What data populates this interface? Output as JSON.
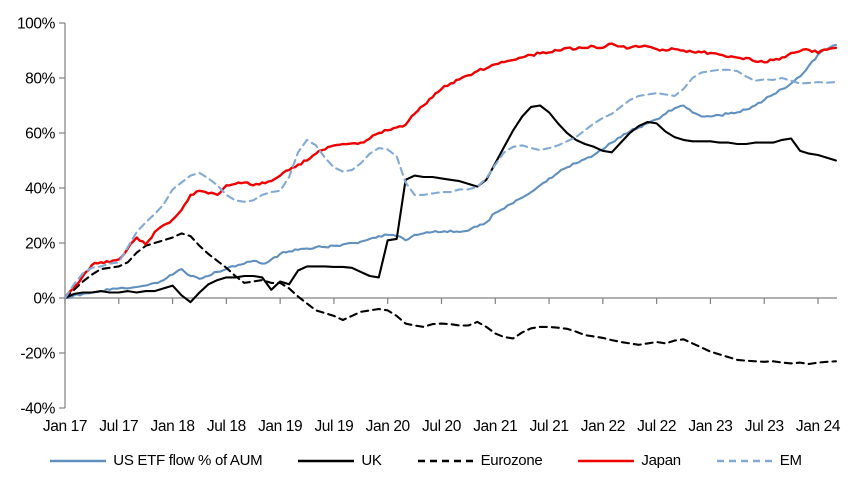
{
  "chart_data": {
    "type": "line",
    "title": "",
    "xlabel": "",
    "ylabel": "",
    "y_axis": {
      "min": -40,
      "max": 100,
      "tick_step": 20,
      "unit": "%",
      "tick_labels": [
        "100%",
        "80%",
        "60%",
        "40%",
        "20%",
        "0%",
        "-20%",
        "-40%"
      ]
    },
    "x_axis": {
      "interval": "monthly points, labels every 6 months",
      "start": "Jan 17",
      "end": "Mar 24",
      "tick_labels": [
        "Jan 17",
        "Jul 17",
        "Jan 18",
        "Jul 18",
        "Jan 19",
        "Jul 19",
        "Jan 20",
        "Jul 20",
        "Jan 21",
        "Jul 21",
        "Jan 22",
        "Jul 22",
        "Jan 23",
        "Jul 23",
        "Jan 24"
      ]
    },
    "grid": "zero line only",
    "legend_position": "bottom",
    "series": [
      {
        "name": "US ETF flow % of AUM",
        "color": "#6090C0",
        "style": "solid",
        "jitter": 0.45,
        "values": [
          0,
          1,
          1.5,
          2,
          2.5,
          3,
          3.5,
          3.5,
          4,
          4.5,
          5.5,
          6.5,
          8.5,
          10.5,
          8,
          7,
          8,
          9.5,
          10.5,
          11.5,
          12.5,
          13.5,
          12.5,
          14,
          16,
          17,
          17.5,
          18,
          18.5,
          18.5,
          19,
          19.5,
          20,
          20.5,
          21.5,
          22.5,
          23,
          22.5,
          21,
          23,
          23.5,
          24,
          24,
          24.5,
          24,
          24.5,
          26,
          27.5,
          31,
          32.5,
          34.5,
          36.5,
          38.5,
          41,
          43.5,
          45.5,
          47.5,
          49,
          50.5,
          52,
          54,
          56.5,
          58.5,
          60.5,
          62,
          63.5,
          65,
          67,
          69,
          70,
          67.5,
          66,
          66,
          66.5,
          67,
          67.5,
          68.5,
          70,
          72,
          74,
          76,
          78,
          80.5,
          84.5,
          88.5,
          90.5,
          92
        ]
      },
      {
        "name": "UK",
        "color": "#000000",
        "style": "solid",
        "jitter": 0,
        "values": [
          0,
          1.5,
          2,
          2,
          2.5,
          2,
          2,
          2.5,
          2,
          2.5,
          2.5,
          3.5,
          4.5,
          1,
          -1.5,
          2,
          5,
          6.5,
          7.5,
          7.5,
          8,
          8,
          7.5,
          3,
          6,
          5,
          10,
          11.5,
          11.5,
          11.5,
          11.3,
          11.3,
          11,
          9.5,
          8,
          7.5,
          21,
          21.5,
          43,
          44.5,
          44,
          44,
          43.5,
          43,
          42.5,
          41.5,
          40.5,
          43,
          49,
          55,
          61,
          66,
          69.5,
          70,
          67.5,
          63.5,
          60,
          57.5,
          56,
          55,
          53.5,
          53,
          56.5,
          60,
          62.5,
          64,
          63.5,
          60.5,
          58.5,
          57.5,
          57,
          57,
          57,
          56.5,
          56.5,
          56,
          56,
          56.5,
          56.5,
          56.5,
          57.5,
          58,
          53.5,
          52.5,
          52,
          51,
          50
        ]
      },
      {
        "name": "Eurozone",
        "color": "#000000",
        "style": "dashed",
        "jitter": 0,
        "values": [
          0,
          3,
          6,
          8.5,
          10.5,
          11,
          11.5,
          13,
          16.5,
          19,
          20,
          21,
          22,
          23.5,
          22.5,
          19,
          16,
          13.5,
          11,
          8,
          5.5,
          6,
          6.5,
          5.5,
          5.5,
          3.5,
          0.5,
          -2,
          -4.5,
          -5.5,
          -6.5,
          -8,
          -6.5,
          -5,
          -4.5,
          -4,
          -4.5,
          -6.5,
          -9.3,
          -10,
          -10.5,
          -9.5,
          -9.3,
          -9.5,
          -10,
          -10,
          -8.7,
          -10.5,
          -12.9,
          -14.2,
          -14.7,
          -12.5,
          -11,
          -10.5,
          -10.5,
          -10.8,
          -11.2,
          -12.2,
          -13.5,
          -14,
          -14.5,
          -15.3,
          -16,
          -16.5,
          -17,
          -16.5,
          -16,
          -16.5,
          -15.5,
          -15,
          -16.5,
          -18,
          -19.5,
          -20.5,
          -21.5,
          -22.5,
          -22.8,
          -23,
          -23.2,
          -23,
          -23.5,
          -23.8,
          -23.5,
          -24,
          -23.5,
          -23.2,
          -23
        ]
      },
      {
        "name": "Japan",
        "color": "#F00000",
        "style": "solid",
        "jitter": 0.5,
        "values": [
          0,
          4,
          8,
          12,
          13,
          13,
          14,
          18,
          22,
          19.5,
          24,
          26.5,
          28.5,
          32,
          37.5,
          39,
          38,
          37.5,
          41,
          41.5,
          42,
          41,
          42,
          42.5,
          44.5,
          46.5,
          48.5,
          50,
          52.5,
          54,
          55.5,
          56,
          56.2,
          56.5,
          58,
          60,
          61,
          62,
          63,
          67,
          70,
          73,
          76,
          78,
          79.5,
          81,
          82.5,
          83.5,
          85,
          85.8,
          86.5,
          87.5,
          88.4,
          89,
          89.3,
          90,
          90.9,
          90.5,
          91,
          91.5,
          91,
          92.5,
          91.5,
          91,
          91.3,
          91.5,
          90.5,
          90,
          90.5,
          90,
          89.5,
          89.3,
          89.1,
          88.5,
          87.6,
          87.4,
          87.3,
          86,
          85.7,
          86.5,
          87.5,
          89.1,
          89.8,
          90.2,
          89.1,
          90.3,
          91
        ]
      },
      {
        "name": "EM",
        "color": "#82AAD4",
        "style": "dashed",
        "jitter": 0,
        "values": [
          0,
          5,
          9,
          11,
          11.5,
          12.5,
          13,
          18.5,
          24,
          27.5,
          30.5,
          34,
          39.5,
          42,
          44.5,
          45.5,
          43.5,
          41,
          37.5,
          35.5,
          35,
          35.5,
          37.5,
          38.5,
          39,
          44,
          53,
          57.5,
          55.5,
          51,
          47.5,
          46,
          46.5,
          49,
          52.5,
          54.5,
          54,
          51.5,
          42,
          37.5,
          37.5,
          38,
          38.5,
          38.5,
          39.5,
          39.5,
          40.5,
          43.5,
          48.5,
          53,
          55,
          55.5,
          54.5,
          53.8,
          54.5,
          55.5,
          57,
          58.5,
          61,
          63.5,
          65.5,
          67,
          69.5,
          72,
          73.5,
          74,
          74.5,
          74,
          73.5,
          76,
          80,
          82,
          82.5,
          83,
          83,
          82.5,
          80.5,
          79,
          79.5,
          79.3,
          80,
          79,
          78,
          78.2,
          78.5,
          78.3,
          78.5
        ]
      }
    ],
    "axis_color": "#808080",
    "text_color": "#000000"
  }
}
